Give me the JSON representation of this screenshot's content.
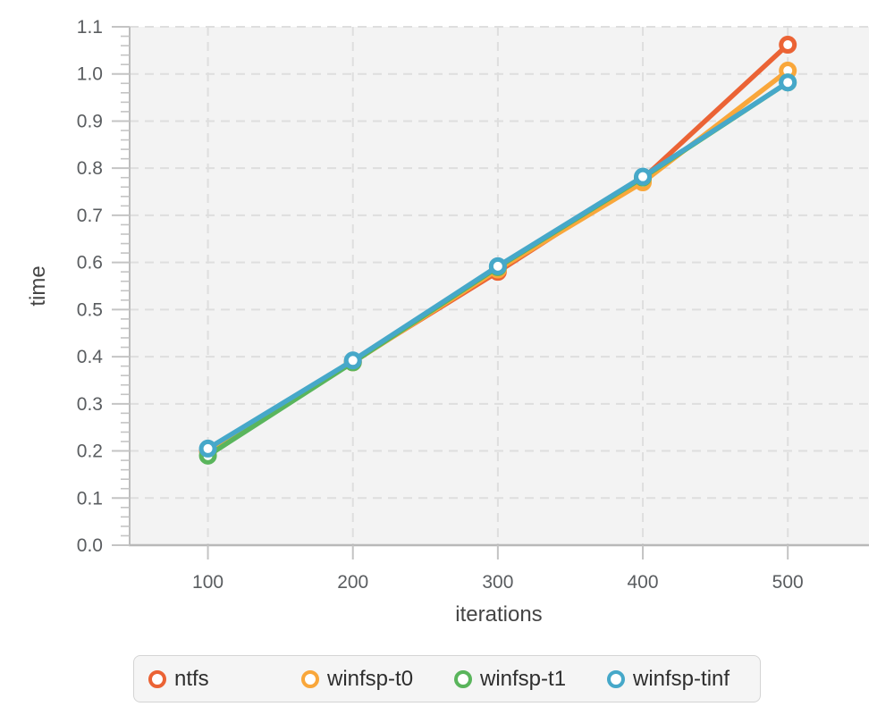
{
  "chart_data": {
    "type": "line",
    "title": "",
    "xlabel": "iterations",
    "ylabel": "time",
    "x": [
      100,
      200,
      300,
      400,
      500
    ],
    "x_tick_labels": [
      "100",
      "200",
      "300",
      "400",
      "500"
    ],
    "y_tick_labels": [
      "0.0",
      "0.1",
      "0.2",
      "0.3",
      "0.4",
      "0.5",
      "0.6",
      "0.7",
      "0.8",
      "0.9",
      "1.0",
      "1.1"
    ],
    "xlim": [
      46,
      556
    ],
    "ylim": [
      0,
      1.1
    ],
    "y_major_step": 0.1,
    "y_minor_step": 0.02,
    "grid": "dashed",
    "legend_position": "bottom",
    "series": [
      {
        "name": "ntfs",
        "color": "#EB6335",
        "values": [
          0.2,
          0.39,
          0.58,
          0.778,
          1.062
        ]
      },
      {
        "name": "winfsp-t0",
        "color": "#F9A73B",
        "values": [
          0.2,
          0.388,
          0.585,
          0.77,
          1.007
        ]
      },
      {
        "name": "winfsp-t1",
        "color": "#5AB55C",
        "values": [
          0.19,
          0.388,
          0.59,
          0.78,
          0.982
        ]
      },
      {
        "name": "winfsp-tinf",
        "color": "#46A8C9",
        "values": [
          0.205,
          0.392,
          0.592,
          0.782,
          0.982
        ]
      }
    ]
  },
  "colors": {
    "plot_background": "#F3F3F3",
    "grid": "#DEDEDE",
    "axis": "#BDBDBD",
    "tick": "#C4C4C4",
    "tick_label": "#5A5D60",
    "axis_title": "#454545",
    "legend_text": "#2E2E2E",
    "legend_background": "#F5F5F5",
    "legend_border": "#D4D4D4"
  }
}
